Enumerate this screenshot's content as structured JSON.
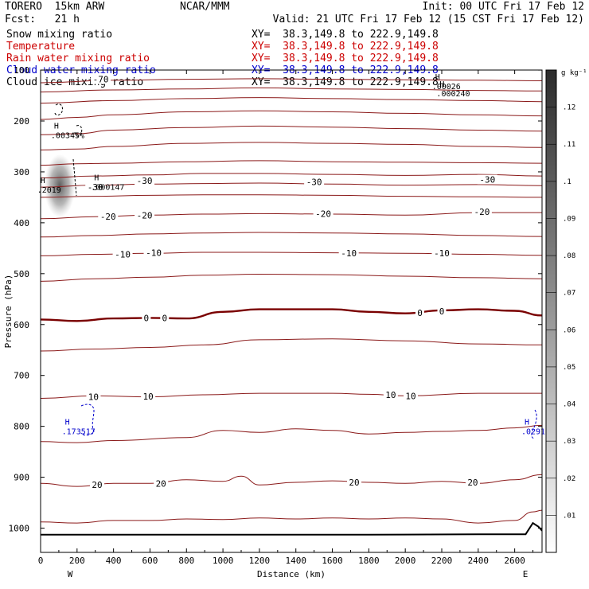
{
  "header": {
    "model": "TORERO  15km ARW",
    "org": "NCAR/MMM",
    "init": "Init: 00 UTC Fri 17 Feb 12",
    "fcst": "Fcst:   21 h",
    "valid": "Valid: 21 UTC Fri 17 Feb 12 (15 CST Fri 17 Feb 12)"
  },
  "fields": [
    {
      "label": "Snow mixing ratio",
      "xy": "XY=  38.3,149.8 to 222.9,149.8",
      "label_color": "#000000",
      "xy_color": "#000000"
    },
    {
      "label": "Temperature",
      "xy": "XY=  38.3,149.8 to 222.9,149.8",
      "label_color": "#cc0000",
      "xy_color": "#cc0000"
    },
    {
      "label": "Rain water mixing ratio",
      "xy": "XY=  38.3,149.8 to 222.9,149.8",
      "label_color": "#cc0000",
      "xy_color": "#cc0000"
    },
    {
      "label": "Cloud water mixing ratio",
      "xy": "XY=  38.3,149.8 to 222.9,149.8",
      "label_color": "#0000cc",
      "xy_color": "#0000cc"
    },
    {
      "label": "Cloud ice mixing ratio",
      "xy": "XY=  38.3,149.8 to 222.9,149.8",
      "label_color": "#000000",
      "xy_color": "#000000"
    }
  ],
  "colors": {
    "temperature": "#8b1a1a",
    "zero_isotherm": "#7a0000",
    "cloud_water": "#0000cc",
    "terrain": "#000000"
  },
  "chart_data": {
    "type": "cross-section contour",
    "xlabel": "Distance (km)",
    "ylabel": "Pressure (hPa)",
    "xlim": [
      0,
      2750
    ],
    "ylim": [
      1050,
      100
    ],
    "xticks": [
      0,
      200,
      400,
      600,
      800,
      1000,
      1200,
      1400,
      1600,
      1800,
      2000,
      2200,
      2400,
      2600
    ],
    "yticks": [
      100,
      200,
      300,
      400,
      500,
      600,
      700,
      800,
      900,
      1000
    ],
    "x_end_labels": {
      "left": "W",
      "right": "E"
    },
    "colorbar": {
      "unit": "g kg⁻¹",
      "ticks": [
        0.13,
        0.12,
        0.11,
        0.1,
        0.09,
        0.08,
        0.07,
        0.06,
        0.05,
        0.04,
        0.03,
        0.02,
        0.01
      ],
      "tick_labels": [
        ".12",
        ".11",
        ".1",
        ".09",
        ".08",
        ".07",
        ".06",
        ".05",
        ".04",
        ".03",
        ".02",
        ".01"
      ],
      "range": [
        0,
        0.13
      ]
    },
    "temperature_contours": [
      {
        "t": -70,
        "p": [
          [
            0,
            125
          ],
          [
            400,
            120
          ],
          [
            800,
            118
          ],
          [
            1200,
            117
          ],
          [
            1600,
            118
          ],
          [
            2000,
            119
          ],
          [
            2400,
            120
          ],
          [
            2750,
            121
          ]
        ]
      },
      {
        "t": -65,
        "p": [
          [
            0,
            143
          ],
          [
            400,
            139
          ],
          [
            800,
            137
          ],
          [
            1200,
            135
          ],
          [
            1600,
            137
          ],
          [
            2000,
            138
          ],
          [
            2400,
            140
          ],
          [
            2750,
            141
          ]
        ]
      },
      {
        "t": -60,
        "p": [
          [
            0,
            165
          ],
          [
            400,
            160
          ],
          [
            800,
            156
          ],
          [
            1200,
            154
          ],
          [
            1600,
            156
          ],
          [
            2000,
            158
          ],
          [
            2400,
            160
          ],
          [
            2750,
            162
          ]
        ]
      },
      {
        "t": -55,
        "p": [
          [
            0,
            197
          ],
          [
            200,
            193
          ],
          [
            400,
            188
          ],
          [
            800,
            182
          ],
          [
            1200,
            180
          ],
          [
            1600,
            182
          ],
          [
            2000,
            185
          ],
          [
            2400,
            188
          ],
          [
            2750,
            190
          ]
        ]
      },
      {
        "t": -50,
        "p": [
          [
            0,
            227
          ],
          [
            200,
            225
          ],
          [
            400,
            218
          ],
          [
            800,
            213
          ],
          [
            1200,
            210
          ],
          [
            1600,
            212
          ],
          [
            2000,
            215
          ],
          [
            2400,
            218
          ],
          [
            2750,
            220
          ]
        ]
      },
      {
        "t": -45,
        "p": [
          [
            0,
            257
          ],
          [
            200,
            255
          ],
          [
            400,
            250
          ],
          [
            800,
            244
          ],
          [
            1200,
            242
          ],
          [
            1600,
            244
          ],
          [
            2000,
            246
          ],
          [
            2400,
            250
          ],
          [
            2750,
            252
          ]
        ]
      },
      {
        "t": -40,
        "p": [
          [
            0,
            287
          ],
          [
            200,
            284
          ],
          [
            400,
            283
          ],
          [
            800,
            280
          ],
          [
            1200,
            278
          ],
          [
            1600,
            280
          ],
          [
            2000,
            281
          ],
          [
            2400,
            282
          ],
          [
            2750,
            283
          ]
        ]
      },
      {
        "t": -35,
        "p": [
          [
            0,
            312
          ],
          [
            300,
            308
          ],
          [
            600,
            306
          ],
          [
            900,
            303
          ],
          [
            1200,
            303
          ],
          [
            1600,
            305
          ],
          [
            2000,
            307
          ],
          [
            2400,
            305
          ],
          [
            2750,
            308
          ]
        ]
      },
      {
        "t": -30,
        "p": [
          [
            0,
            330
          ],
          [
            300,
            326
          ],
          [
            600,
            324
          ],
          [
            900,
            323
          ],
          [
            1200,
            322
          ],
          [
            1600,
            324
          ],
          [
            2000,
            326
          ],
          [
            2400,
            325
          ],
          [
            2750,
            327
          ]
        ]
      },
      {
        "t": -25,
        "p": [
          [
            0,
            350
          ],
          [
            300,
            348
          ],
          [
            600,
            346
          ],
          [
            900,
            345
          ],
          [
            1200,
            345
          ],
          [
            1600,
            346
          ],
          [
            2000,
            348
          ],
          [
            2400,
            349
          ],
          [
            2750,
            350
          ]
        ]
      },
      {
        "t": -20,
        "p": [
          [
            0,
            392
          ],
          [
            300,
            388
          ],
          [
            600,
            385
          ],
          [
            900,
            383
          ],
          [
            1200,
            382
          ],
          [
            1600,
            383
          ],
          [
            2000,
            385
          ],
          [
            2400,
            380
          ],
          [
            2750,
            380
          ]
        ]
      },
      {
        "t": -15,
        "p": [
          [
            0,
            428
          ],
          [
            300,
            425
          ],
          [
            600,
            422
          ],
          [
            900,
            420
          ],
          [
            1200,
            419
          ],
          [
            1600,
            420
          ],
          [
            2000,
            422
          ],
          [
            2400,
            425
          ],
          [
            2750,
            427
          ]
        ]
      },
      {
        "t": -10,
        "p": [
          [
            0,
            465
          ],
          [
            300,
            462
          ],
          [
            600,
            460
          ],
          [
            900,
            458
          ],
          [
            1200,
            458
          ],
          [
            1600,
            459
          ],
          [
            2000,
            460
          ],
          [
            2400,
            462
          ],
          [
            2750,
            464
          ]
        ]
      },
      {
        "t": -5,
        "p": [
          [
            0,
            515
          ],
          [
            300,
            510
          ],
          [
            600,
            507
          ],
          [
            900,
            503
          ],
          [
            1200,
            501
          ],
          [
            1600,
            502
          ],
          [
            2000,
            505
          ],
          [
            2400,
            508
          ],
          [
            2750,
            510
          ]
        ]
      },
      {
        "t": 0,
        "p": [
          [
            0,
            590
          ],
          [
            200,
            593
          ],
          [
            400,
            588
          ],
          [
            600,
            587
          ],
          [
            800,
            588
          ],
          [
            1000,
            575
          ],
          [
            1200,
            570
          ],
          [
            1600,
            570
          ],
          [
            1800,
            575
          ],
          [
            2000,
            578
          ],
          [
            2200,
            572
          ],
          [
            2400,
            570
          ],
          [
            2600,
            573
          ],
          [
            2750,
            582
          ]
        ]
      },
      {
        "t": 5,
        "p": [
          [
            0,
            652
          ],
          [
            300,
            648
          ],
          [
            600,
            645
          ],
          [
            900,
            640
          ],
          [
            1200,
            630
          ],
          [
            1600,
            628
          ],
          [
            2000,
            632
          ],
          [
            2400,
            638
          ],
          [
            2750,
            640
          ]
        ]
      },
      {
        "t": 10,
        "p": [
          [
            0,
            745
          ],
          [
            300,
            740
          ],
          [
            600,
            742
          ],
          [
            900,
            738
          ],
          [
            1200,
            735
          ],
          [
            1600,
            735
          ],
          [
            1800,
            737
          ],
          [
            2000,
            740
          ],
          [
            2400,
            735
          ],
          [
            2750,
            735
          ]
        ]
      },
      {
        "t": 15,
        "p": [
          [
            0,
            830
          ],
          [
            200,
            832
          ],
          [
            400,
            828
          ],
          [
            800,
            822
          ],
          [
            1000,
            808
          ],
          [
            1200,
            812
          ],
          [
            1400,
            805
          ],
          [
            1600,
            808
          ],
          [
            1800,
            815
          ],
          [
            2000,
            812
          ],
          [
            2200,
            810
          ],
          [
            2400,
            808
          ],
          [
            2600,
            803
          ],
          [
            2750,
            798
          ]
        ]
      },
      {
        "t": 20,
        "p": [
          [
            0,
            912
          ],
          [
            200,
            918
          ],
          [
            400,
            912
          ],
          [
            600,
            912
          ],
          [
            800,
            905
          ],
          [
            1000,
            908
          ],
          [
            1100,
            898
          ],
          [
            1200,
            915
          ],
          [
            1400,
            910
          ],
          [
            1600,
            907
          ],
          [
            1800,
            910
          ],
          [
            2000,
            912
          ],
          [
            2200,
            908
          ],
          [
            2400,
            912
          ],
          [
            2600,
            905
          ],
          [
            2750,
            895
          ]
        ]
      },
      {
        "t": 25,
        "p": [
          [
            0,
            988
          ],
          [
            200,
            990
          ],
          [
            400,
            985
          ],
          [
            600,
            985
          ],
          [
            800,
            982
          ],
          [
            1000,
            983
          ],
          [
            1200,
            980
          ],
          [
            1400,
            982
          ],
          [
            1600,
            980
          ],
          [
            1800,
            982
          ],
          [
            2000,
            980
          ],
          [
            2200,
            982
          ],
          [
            2400,
            990
          ],
          [
            2600,
            985
          ],
          [
            2700,
            968
          ],
          [
            2750,
            965
          ]
        ]
      }
    ],
    "contour_labels": [
      {
        "text": "-70",
        "x": 330,
        "p": 118
      },
      {
        "text": "-30",
        "x": 300,
        "p": 330
      },
      {
        "text": "-30",
        "x": 570,
        "p": 317
      },
      {
        "text": "-30",
        "x": 1500,
        "p": 320
      },
      {
        "text": "-30",
        "x": 2450,
        "p": 315
      },
      {
        "text": "-20",
        "x": 370,
        "p": 388
      },
      {
        "text": "-20",
        "x": 570,
        "p": 385
      },
      {
        "text": "-20",
        "x": 1550,
        "p": 382
      },
      {
        "text": "-20",
        "x": 2420,
        "p": 378
      },
      {
        "text": "-10",
        "x": 450,
        "p": 462
      },
      {
        "text": "-10",
        "x": 620,
        "p": 459
      },
      {
        "text": "-10",
        "x": 1690,
        "p": 460
      },
      {
        "text": "-10",
        "x": 2200,
        "p": 460
      },
      {
        "text": "0",
        "x": 580,
        "p": 587
      },
      {
        "text": "0",
        "x": 680,
        "p": 587
      },
      {
        "text": "0",
        "x": 2080,
        "p": 577
      },
      {
        "text": "0",
        "x": 2200,
        "p": 574
      },
      {
        "text": "10",
        "x": 290,
        "p": 742
      },
      {
        "text": "10",
        "x": 590,
        "p": 741
      },
      {
        "text": "10",
        "x": 1920,
        "p": 738
      },
      {
        "text": "10",
        "x": 2030,
        "p": 740
      },
      {
        "text": "20",
        "x": 310,
        "p": 915
      },
      {
        "text": "20",
        "x": 660,
        "p": 912
      },
      {
        "text": "20",
        "x": 1720,
        "p": 910
      },
      {
        "text": "20",
        "x": 2370,
        "p": 910
      }
    ],
    "snow_shading": {
      "x": [
        20,
        190
      ],
      "p": [
        265,
        390
      ],
      "max": 0.0345
    },
    "extrema": [
      {
        "kind": "H",
        "value": ".00345%",
        "x": 100,
        "p": 218
      },
      {
        "kind": "H",
        "value": ".000147",
        "x": 320,
        "p": 320
      },
      {
        "kind": "H",
        "value": ".2019",
        "x": 25,
        "p": 325
      },
      {
        "kind": "H",
        "value": ".00026",
        "x": 2190,
        "p": 122
      },
      {
        "kind": "H",
        "value": ".000240",
        "x": 2215,
        "p": 136
      },
      {
        "kind": "H",
        "value": ".173517",
        "x": 160,
        "p": 800,
        "color": "cloud_water"
      },
      {
        "kind": "H",
        "value": ".0291",
        "x": 2680,
        "p": 800,
        "color": "cloud_water"
      }
    ],
    "terrain_p": [
      [
        0,
        1013
      ],
      [
        600,
        1013
      ],
      [
        1200,
        1013
      ],
      [
        1800,
        1013
      ],
      [
        2400,
        1012
      ],
      [
        2660,
        1012
      ],
      [
        2700,
        990
      ],
      [
        2730,
        997
      ],
      [
        2750,
        1005
      ]
    ]
  }
}
